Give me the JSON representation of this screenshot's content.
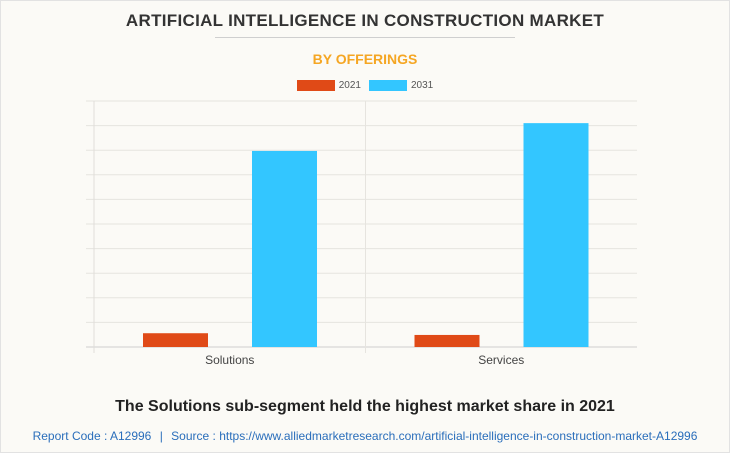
{
  "title": "ARTIFICIAL INTELLIGENCE IN CONSTRUCTION MARKET",
  "subtitle": "BY OFFERINGS",
  "insight": "The Solutions sub-segment held the highest market share in 2021",
  "footer": {
    "report_code": "Report Code : A12996",
    "separator": "|",
    "source": "Source : https://www.alliedmarketresearch.com/artificial-intelligence-in-construction-market-A12996"
  },
  "chart_data": {
    "type": "bar",
    "title": "ARTIFICIAL INTELLIGENCE IN CONSTRUCTION MARKET",
    "subtitle": "BY OFFERINGS",
    "categories": [
      "Solutions",
      "Services"
    ],
    "series": [
      {
        "name": "2021",
        "color": "#e04a17",
        "values": [
          0.56,
          0.49
        ]
      },
      {
        "name": "2031",
        "color": "#33c6ff",
        "values": [
          7.97,
          9.1
        ]
      }
    ],
    "ylim": [
      0,
      10
    ],
    "y_tick_labels_shown": false,
    "grid": true,
    "legend": "top-center",
    "xlabel": "",
    "ylabel": ""
  }
}
